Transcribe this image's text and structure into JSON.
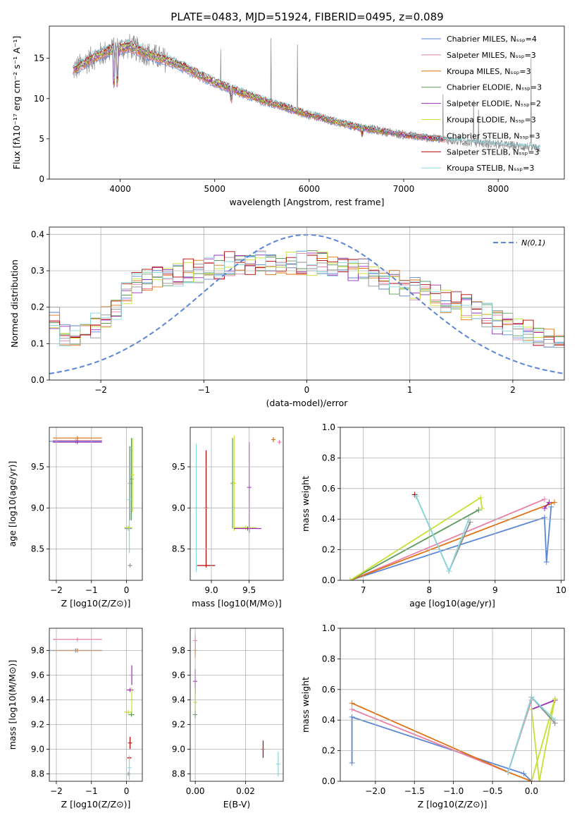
{
  "title": "PLATE=0483, MJD=51924, FIBERID=0495, z=0.089",
  "colors": [
    "#5b86d6",
    "#e880a8",
    "#e07010",
    "#5a9a5a",
    "#9a2bb8",
    "#c8e030",
    "#909090",
    "#b00000",
    "#88d8e0"
  ],
  "series_names": [
    "Chabrier MILES, N_SSP=4",
    "Salpeter MILES, N_SSP=3",
    "Kroupa MILES, N_SSP=3",
    "Chabrier ELODIE, N_SSP=3",
    "Salpeter ELODIE, N_SSP=2",
    "Kroupa ELODIE, N_SSP=3",
    "Chabrier STELIB, N_SSP=3",
    "Salpeter STELIB, N_SSP=3",
    "Kroupa STELIB, N_SSP=3"
  ],
  "chart_data": [
    {
      "id": "spectrum",
      "type": "line",
      "xlabel": "wavelength [Angstrom, rest frame]",
      "ylabel": "Flux [f_λ10^-17 erg cm^-2 s^-1 A^-1]",
      "xlim": [
        3250,
        8700
      ],
      "ylim": [
        0,
        19
      ],
      "xticks": [
        4000,
        5000,
        6000,
        7000,
        8000
      ],
      "yticks": [
        0,
        5,
        10,
        15
      ],
      "continuum": [
        [
          3500,
          13.5
        ],
        [
          3700,
          15.0
        ],
        [
          3900,
          16.0
        ],
        [
          4100,
          16.5
        ],
        [
          4300,
          15.5
        ],
        [
          4600,
          14.3
        ],
        [
          5000,
          12.0
        ],
        [
          5500,
          9.8
        ],
        [
          6000,
          8.0
        ],
        [
          6500,
          6.5
        ],
        [
          7000,
          5.5
        ],
        [
          7500,
          4.8
        ],
        [
          8000,
          4.3
        ],
        [
          8500,
          3.8
        ]
      ],
      "legend": "upper right"
    },
    {
      "id": "residuals",
      "type": "step",
      "xlabel": "(data-model)/error",
      "ylabel": "Normed distribution",
      "xlim": [
        -2.5,
        2.5
      ],
      "ylim": [
        0,
        0.42
      ],
      "xticks": [
        -2,
        -1,
        0,
        1,
        2
      ],
      "yticks": [
        0.0,
        0.1,
        0.2,
        0.3,
        0.4
      ],
      "bin_edges_start": -2.5,
      "bin_width": 0.1,
      "base_hist": [
        0.17,
        0.12,
        0.12,
        0.13,
        0.15,
        0.17,
        0.2,
        0.24,
        0.26,
        0.27,
        0.28,
        0.29,
        0.29,
        0.3,
        0.3,
        0.31,
        0.31,
        0.32,
        0.32,
        0.32,
        0.32,
        0.32,
        0.32,
        0.32,
        0.32,
        0.32,
        0.32,
        0.31,
        0.31,
        0.3,
        0.3,
        0.29,
        0.28,
        0.27,
        0.26,
        0.25,
        0.24,
        0.23,
        0.22,
        0.21,
        0.2,
        0.19,
        0.18,
        0.16,
        0.15,
        0.14,
        0.13,
        0.12,
        0.11,
        0.1
      ],
      "normal_label": "N(0,1)",
      "normal_color": "#5b86d6",
      "legend": "upper right"
    },
    {
      "id": "age-Z",
      "type": "errorbar",
      "xlabel": "Z [log10(Z/Z⊙)]",
      "ylabel": "age  [log10(age/yr)]",
      "xlim": [
        -2.2,
        0.45
      ],
      "ylim": [
        8.12,
        9.98
      ],
      "xticks": [
        -2,
        -1,
        0
      ],
      "yticks": [
        8.5,
        9.0,
        9.5
      ],
      "points": [
        {
          "s": 0,
          "x": -1.45,
          "y": 9.81,
          "xerr": 0.75,
          "yerr": 0.01
        },
        {
          "s": 1,
          "x": -1.4,
          "y": 9.82,
          "xerr": 0.7,
          "yerr": 0.01
        },
        {
          "s": 2,
          "x": -1.4,
          "y": 9.85,
          "xerr": 0.7,
          "yerr": 0.01
        },
        {
          "s": 4,
          "x": -1.4,
          "y": 9.8,
          "xerr": 0.7,
          "yerr": 0.01
        },
        {
          "s": 0,
          "x": 0.05,
          "y": 8.75,
          "xerr": 0.1,
          "yerr": 0.01
        },
        {
          "s": 5,
          "x": 0.05,
          "y": 8.76,
          "xerr": 0.12,
          "yerr": 0.01
        },
        {
          "s": 6,
          "x": 0.1,
          "y": 9.3,
          "xerr": 0.01,
          "yerr": 0.45
        },
        {
          "s": 3,
          "x": 0.14,
          "y": 9.35,
          "xerr": 0.01,
          "yerr": 0.5
        },
        {
          "s": 5,
          "x": 0.17,
          "y": 9.4,
          "xerr": 0.01,
          "yerr": 0.45
        },
        {
          "s": 8,
          "x": 0.08,
          "y": 9.1,
          "xerr": 0.01,
          "yerr": 0.65
        },
        {
          "s": 6,
          "x": 0.1,
          "y": 8.3,
          "xerr": 0.06,
          "yerr": 0.01
        }
      ]
    },
    {
      "id": "age-mass",
      "type": "errorbar",
      "xlabel": "mass [log10(M/M⊙)]",
      "ylabel": "",
      "xlim": [
        8.72,
        9.95
      ],
      "ylim": [
        8.12,
        9.98
      ],
      "xticks": [
        9.0,
        9.5
      ],
      "yticks": [
        8.5,
        9.0,
        9.5
      ],
      "points": [
        {
          "s": 2,
          "x": 9.82,
          "y": 9.83,
          "xerr": 0.01,
          "yerr": 0.03
        },
        {
          "s": 1,
          "x": 9.9,
          "y": 9.8,
          "xerr": 0.02,
          "yerr": 0.02
        },
        {
          "s": 8,
          "x": 8.8,
          "y": 9.0,
          "xerr": 0.01,
          "yerr": 0.78
        },
        {
          "s": 7,
          "x": 8.93,
          "y": 9.0,
          "xerr": 0.01,
          "yerr": 0.7
        },
        {
          "s": 7,
          "x": 8.93,
          "y": 8.3,
          "xerr": 0.12,
          "yerr": 0.01
        },
        {
          "s": 3,
          "x": 9.28,
          "y": 9.3,
          "xerr": 0.01,
          "yerr": 0.55
        },
        {
          "s": 5,
          "x": 9.3,
          "y": 9.3,
          "xerr": 0.01,
          "yerr": 0.58
        },
        {
          "s": 4,
          "x": 9.5,
          "y": 9.25,
          "xerr": 0.01,
          "yerr": 0.55
        },
        {
          "s": 5,
          "x": 9.45,
          "y": 8.76,
          "xerr": 0.15,
          "yerr": 0.01
        },
        {
          "s": 4,
          "x": 9.48,
          "y": 8.75,
          "xerr": 0.18,
          "yerr": 0.01
        }
      ]
    },
    {
      "id": "mw-age",
      "type": "line",
      "xlabel": "age  [log10(age/yr)]",
      "ylabel": "mass weight",
      "xlim": [
        6.65,
        10.05
      ],
      "ylim": [
        0,
        1.0
      ],
      "xticks": [
        7,
        8,
        9,
        10
      ],
      "yticks": [
        0.0,
        0.2,
        0.4,
        0.6,
        0.8,
        1.0
      ],
      "series": [
        {
          "s": 0,
          "x": [
            6.8,
            9.75,
            9.78,
            9.85
          ],
          "y": [
            0.0,
            0.41,
            0.12,
            0.48
          ]
        },
        {
          "s": 1,
          "x": [
            6.8,
            9.75
          ],
          "y": [
            0.0,
            0.53
          ]
        },
        {
          "s": 2,
          "x": [
            6.8,
            9.9
          ],
          "y": [
            0.0,
            0.51
          ]
        },
        {
          "s": 3,
          "x": [
            6.8,
            8.75
          ],
          "y": [
            0.0,
            0.46
          ]
        },
        {
          "s": 4,
          "x": [
            9.75,
            9.82
          ],
          "y": [
            0.47,
            0.51
          ]
        },
        {
          "s": 5,
          "x": [
            6.8,
            8.78,
            8.8
          ],
          "y": [
            0.0,
            0.54,
            0.47
          ]
        },
        {
          "s": 6,
          "x": [
            7.8,
            8.3,
            8.62
          ],
          "y": [
            0.55,
            0.06,
            0.38
          ]
        },
        {
          "s": 7,
          "x": [
            7.78
          ],
          "y": [
            0.56
          ]
        },
        {
          "s": 8,
          "x": [
            7.8,
            8.3,
            8.6
          ],
          "y": [
            0.55,
            0.06,
            0.4
          ]
        }
      ]
    },
    {
      "id": "mass-Z",
      "type": "errorbar",
      "xlabel": "Z [log10(Z/Z⊙)]",
      "ylabel": "mass [log10(M/M⊙)]",
      "xlim": [
        -2.2,
        0.45
      ],
      "ylim": [
        8.74,
        9.98
      ],
      "xticks": [
        -2,
        -1,
        0
      ],
      "yticks": [
        8.8,
        9.0,
        9.2,
        9.4,
        9.6,
        9.8
      ],
      "points": [
        {
          "s": 1,
          "x": -1.4,
          "y": 9.89,
          "xerr": 0.7,
          "yerr": 0.01
        },
        {
          "s": 0,
          "x": -1.45,
          "y": 9.8,
          "xerr": 0.75,
          "yerr": 0.01
        },
        {
          "s": 2,
          "x": -1.4,
          "y": 9.8,
          "xerr": 0.7,
          "yerr": 0.01
        },
        {
          "s": 4,
          "x": 0.15,
          "y": 9.6,
          "xerr": 0.01,
          "yerr": 0.08
        },
        {
          "s": 4,
          "x": 0.1,
          "y": 9.48,
          "xerr": 0.1,
          "yerr": 0.01
        },
        {
          "s": 5,
          "x": 0.15,
          "y": 9.4,
          "xerr": 0.01,
          "yerr": 0.1
        },
        {
          "s": 5,
          "x": 0.05,
          "y": 9.3,
          "xerr": 0.12,
          "yerr": 0.01
        },
        {
          "s": 3,
          "x": 0.14,
          "y": 9.28,
          "xerr": 0.08,
          "yerr": 0.01
        },
        {
          "s": 7,
          "x": 0.1,
          "y": 9.05,
          "xerr": 0.01,
          "yerr": 0.05
        },
        {
          "s": 7,
          "x": 0.08,
          "y": 8.93,
          "xerr": 0.05,
          "yerr": 0.01
        },
        {
          "s": 8,
          "x": 0.08,
          "y": 8.85,
          "xerr": 0.01,
          "yerr": 0.1
        },
        {
          "s": 6,
          "x": 0.05,
          "y": 8.8,
          "xerr": 0.06,
          "yerr": 0.01
        }
      ]
    },
    {
      "id": "mass-EBV",
      "type": "errorbar",
      "xlabel": "E(B-V)",
      "ylabel": "",
      "xlim": [
        -0.002,
        0.035
      ],
      "ylim": [
        8.74,
        9.98
      ],
      "xticks": [
        0.0,
        0.02
      ],
      "yticks": [
        8.8,
        9.0,
        9.2,
        9.4,
        9.6,
        9.8
      ],
      "points": [
        {
          "s": 2,
          "x": 0.0,
          "y": 9.8,
          "xerr": 0.0,
          "yerr": 0.06
        },
        {
          "s": 1,
          "x": 0.0,
          "y": 9.88,
          "xerr": 0.0,
          "yerr": 0.05
        },
        {
          "s": 4,
          "x": 0.0,
          "y": 9.55,
          "xerr": 0.0,
          "yerr": 0.1
        },
        {
          "s": 5,
          "x": 0.0,
          "y": 9.38,
          "xerr": 0.0,
          "yerr": 0.12
        },
        {
          "s": 3,
          "x": 0.0,
          "y": 9.28,
          "xerr": 0.0,
          "yerr": 0.03
        },
        {
          "s": 7,
          "x": 0.027,
          "y": 9.0,
          "xerr": 0.0,
          "yerr": 0.07
        },
        {
          "s": 8,
          "x": 0.033,
          "y": 8.88,
          "xerr": 0.0,
          "yerr": 0.1
        }
      ]
    },
    {
      "id": "mw-Z",
      "type": "line",
      "xlabel": "Z [log10(Z/Z⊙)]",
      "ylabel": "mass weight",
      "xlim": [
        -2.45,
        0.42
      ],
      "ylim": [
        0,
        1.0
      ],
      "xticks": [
        -2.0,
        -1.5,
        -1.0,
        -0.5,
        0.0
      ],
      "yticks": [
        0.0,
        0.2,
        0.4,
        0.6,
        0.8,
        1.0
      ],
      "series": [
        {
          "s": 0,
          "x": [
            -2.3,
            -2.3,
            -0.1,
            0.0,
            0.0
          ],
          "y": [
            0.12,
            0.42,
            0.05,
            0.0,
            0.0
          ]
        },
        {
          "s": 1,
          "x": [
            -2.3,
            -0.3,
            0.0
          ],
          "y": [
            0.47,
            0.06,
            0.53
          ]
        },
        {
          "s": 2,
          "x": [
            -2.3,
            -0.3,
            0.0
          ],
          "y": [
            0.51,
            0.06,
            0.0
          ]
        },
        {
          "s": 3,
          "x": [
            0.0,
            0.3
          ],
          "y": [
            0.55,
            0.38
          ]
        },
        {
          "s": 4,
          "x": [
            0.0,
            0.3
          ],
          "y": [
            0.47,
            0.53
          ]
        },
        {
          "s": 5,
          "x": [
            0.0,
            0.3,
            0.1,
            0.0
          ],
          "y": [
            0.0,
            0.54,
            0.0,
            0.47
          ]
        },
        {
          "s": 6,
          "x": [
            -0.3,
            0.0,
            0.3
          ],
          "y": [
            0.06,
            0.55,
            0.38
          ]
        },
        {
          "s": 8,
          "x": [
            -0.3,
            0.0,
            0.3
          ],
          "y": [
            0.06,
            0.55,
            0.4
          ]
        }
      ]
    }
  ]
}
